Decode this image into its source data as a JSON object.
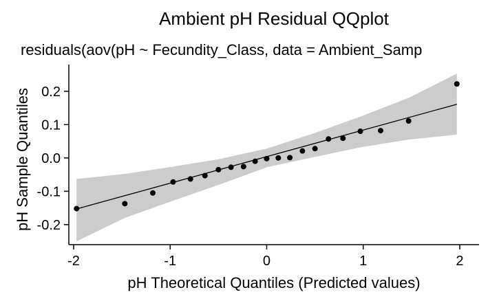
{
  "chart_data": {
    "type": "scatter",
    "title": "Ambient pH Residual QQplot",
    "subtitle": "residuals(aov(pH ~ Fecundity_Class, data = Ambient_Samp",
    "xlabel": "pH Theoretical Quantiles (Predicted values)",
    "ylabel": "pH Sample Quantiles",
    "xlim": [
      -2.05,
      2.2
    ],
    "ylim": [
      -0.26,
      0.28
    ],
    "x_ticks": [
      -2,
      -1,
      0,
      1,
      2
    ],
    "x_tick_labels": [
      "-2",
      "-1",
      "0",
      "1",
      "2"
    ],
    "y_ticks": [
      -0.2,
      -0.1,
      0.0,
      0.1,
      0.2
    ],
    "y_tick_labels": [
      "-0.2",
      "-0.1",
      "0.0",
      "0.1",
      "0.2"
    ],
    "grid": false,
    "points": {
      "x": [
        -1.97,
        -1.47,
        -1.18,
        -0.97,
        -0.79,
        -0.64,
        -0.5,
        -0.37,
        -0.24,
        -0.12,
        0.0,
        0.12,
        0.24,
        0.37,
        0.5,
        0.64,
        0.79,
        0.97,
        1.18,
        1.47,
        1.97
      ],
      "y": [
        -0.152,
        -0.137,
        -0.105,
        -0.072,
        -0.063,
        -0.053,
        -0.035,
        -0.028,
        -0.026,
        -0.01,
        -0.002,
        0.0,
        0.001,
        0.021,
        0.028,
        0.057,
        0.059,
        0.08,
        0.082,
        0.111,
        0.222
      ]
    },
    "reference_line": {
      "x": [
        -1.97,
        1.97
      ],
      "y": [
        -0.153,
        0.161
      ]
    },
    "confidence_band": {
      "x": [
        -1.97,
        -1.47,
        -0.97,
        -0.5,
        0.0,
        0.5,
        0.97,
        1.47,
        1.97
      ],
      "lower": [
        -0.25,
        -0.18,
        -0.128,
        -0.081,
        -0.028,
        0.003,
        0.032,
        0.055,
        0.07
      ],
      "upper": [
        -0.063,
        -0.048,
        -0.026,
        -0.004,
        0.028,
        0.075,
        0.124,
        0.18,
        0.253
      ]
    },
    "colors": {
      "points": "#000000",
      "line": "#000000",
      "band": "#cccccc",
      "axis": "#000000"
    }
  }
}
